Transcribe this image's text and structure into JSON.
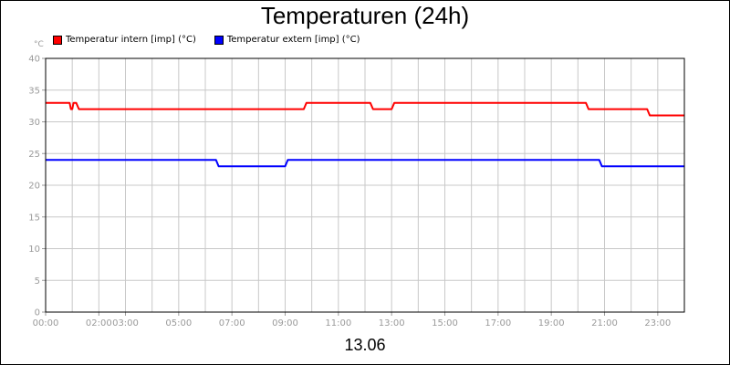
{
  "chart_data": {
    "type": "line",
    "title": "Temperaturen (24h)",
    "ylabel": "°C",
    "xlabel": "13.06",
    "ylim": [
      0,
      40
    ],
    "yticks": [
      0,
      5,
      10,
      15,
      20,
      25,
      30,
      35,
      40
    ],
    "xlim": [
      0,
      24
    ],
    "xticks": [
      {
        "x": 0,
        "label": "00:00"
      },
      {
        "x": 2,
        "label": "02:00"
      },
      {
        "x": 3,
        "label": "03:00"
      },
      {
        "x": 5,
        "label": "05:00"
      },
      {
        "x": 7,
        "label": "07:00"
      },
      {
        "x": 9,
        "label": "09:00"
      },
      {
        "x": 11,
        "label": "11:00"
      },
      {
        "x": 13,
        "label": "13:00"
      },
      {
        "x": 15,
        "label": "15:00"
      },
      {
        "x": 17,
        "label": "17:00"
      },
      {
        "x": 19,
        "label": "19:00"
      },
      {
        "x": 21,
        "label": "21:00"
      },
      {
        "x": 23,
        "label": "23:00"
      }
    ],
    "grid": true,
    "legend": "top-left",
    "series": [
      {
        "name": "Temperatur intern [imp] (°C)",
        "color": "#ff0000",
        "x": [
          0,
          0.9,
          0.95,
          1.0,
          1.05,
          1.1,
          1.15,
          1.25,
          9.7,
          9.8,
          12.2,
          12.3,
          13.0,
          13.1,
          20.3,
          20.4,
          22.6,
          22.7,
          24
        ],
        "y": [
          33,
          33,
          32,
          32,
          33,
          33,
          33,
          32,
          32,
          33,
          33,
          32,
          32,
          33,
          33,
          32,
          32,
          31,
          31
        ]
      },
      {
        "name": "Temperatur extern [imp] (°C)",
        "color": "#0000ff",
        "x": [
          0,
          6.4,
          6.5,
          9.0,
          9.1,
          20.8,
          20.9,
          24
        ],
        "y": [
          24,
          24,
          23,
          23,
          24,
          24,
          23,
          23
        ]
      }
    ]
  }
}
